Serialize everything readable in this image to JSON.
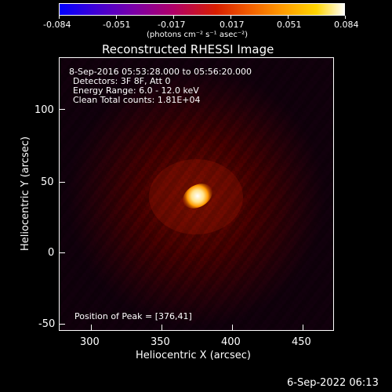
{
  "colorbar": {
    "ticks": [
      "-0.084",
      "-0.051",
      "-0.017",
      "0.017",
      "0.051",
      "0.084"
    ],
    "unit_label": "(photons cm⁻² s⁻¹ asec⁻²)",
    "colors": [
      "#0000ff",
      "#3b00d8",
      "#7a00a8",
      "#b00068",
      "#d81e00",
      "#f05a00",
      "#ff9a00",
      "#ffd500",
      "#ffffff"
    ]
  },
  "plot": {
    "title": "Reconstructed RHESSI Image",
    "xlabel": "Heliocentric X (arcsec)",
    "ylabel": "Heliocentric Y (arcsec)",
    "xticks": [
      "300",
      "350",
      "400",
      "450"
    ],
    "yticks": [
      "100",
      "50",
      "0",
      "-50"
    ],
    "info": {
      "line1": "8-Sep-2016 05:53:28.000 to 05:56:20.000",
      "line2": "Detectors: 3F 8F, Att 0",
      "line3": "Energy Range: 6.0 - 12.0 keV",
      "line4": "Clean     Total counts: 1.81E+04"
    },
    "peak": "Position of Peak = [376,41]",
    "xlim": [
      280,
      470
    ],
    "ylim": [
      -55,
      135
    ]
  },
  "footer": {
    "timestamp": "6-Sep-2022 06:13"
  }
}
